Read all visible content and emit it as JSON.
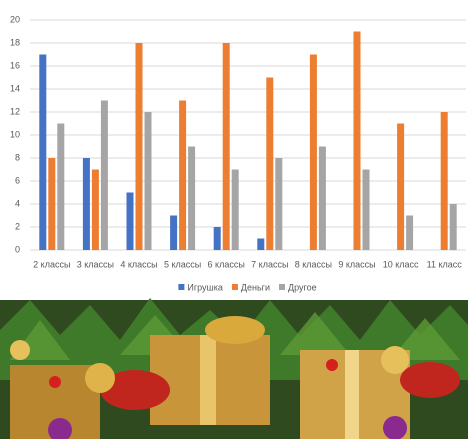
{
  "chart_data": {
    "type": "bar",
    "categories": [
      "2 классы",
      "3 классы",
      "4 классы",
      "5 классы",
      "6 классы",
      "7 классы",
      "8 классы",
      "9 классы",
      "10 класс",
      "11 класс"
    ],
    "series": [
      {
        "name": "Игрушка",
        "color": "#4472c4",
        "values": [
          17,
          8,
          5,
          3,
          2,
          1,
          0,
          0,
          0,
          0
        ]
      },
      {
        "name": "Деньги",
        "color": "#ed7d31",
        "values": [
          8,
          7,
          18,
          13,
          18,
          15,
          17,
          19,
          11,
          12
        ]
      },
      {
        "name": "Другое",
        "color": "#a5a5a5",
        "values": [
          11,
          13,
          12,
          9,
          7,
          8,
          9,
          7,
          3,
          4
        ]
      }
    ],
    "ylim": [
      0,
      20
    ],
    "yticks": [
      0,
      2,
      4,
      6,
      8,
      10,
      12,
      14,
      16,
      18,
      20
    ],
    "grid": true,
    "legend": "bottom"
  }
}
